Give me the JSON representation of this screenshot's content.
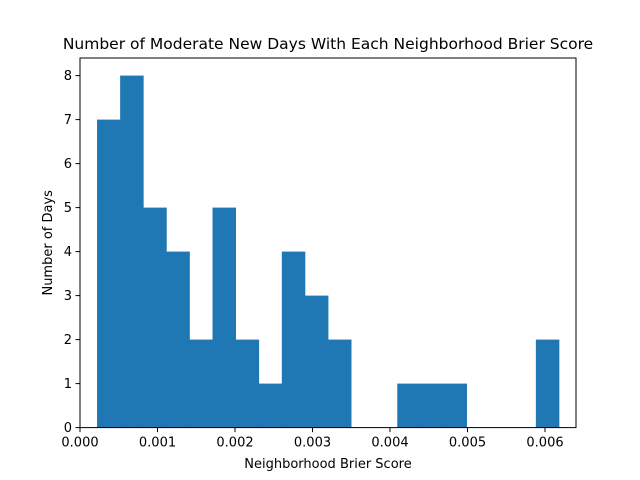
{
  "chart_data": {
    "type": "bar",
    "title": "Number of Moderate New Days With Each Neighborhood Brier Score",
    "xlabel": "Neighborhood Brier Score",
    "ylabel": "Number of Days",
    "bar_color": "#1f77b4",
    "xlim": [
      0.0,
      0.0064
    ],
    "ylim": [
      0,
      8.4
    ],
    "xticks": [
      0.0,
      0.001,
      0.002,
      0.003,
      0.004,
      0.005,
      0.006
    ],
    "xtick_labels": [
      "0.000",
      "0.001",
      "0.002",
      "0.003",
      "0.004",
      "0.005",
      "0.006"
    ],
    "yticks": [
      0,
      1,
      2,
      3,
      4,
      5,
      6,
      7,
      8
    ],
    "ytick_labels": [
      "0",
      "1",
      "2",
      "3",
      "4",
      "5",
      "6",
      "7",
      "8"
    ],
    "bin_edges": [
      0.00022,
      0.000518,
      0.000816,
      0.001114,
      0.001412,
      0.00171,
      0.002008,
      0.002306,
      0.002604,
      0.002902,
      0.0032,
      0.003498,
      0.003796,
      0.004094,
      0.004392,
      0.00469,
      0.004988,
      0.005286,
      0.005584,
      0.005882,
      0.00618
    ],
    "values": [
      7,
      8,
      5,
      4,
      2,
      5,
      2,
      1,
      4,
      3,
      2,
      0,
      0,
      1,
      1,
      1,
      0,
      0,
      0,
      2
    ]
  }
}
